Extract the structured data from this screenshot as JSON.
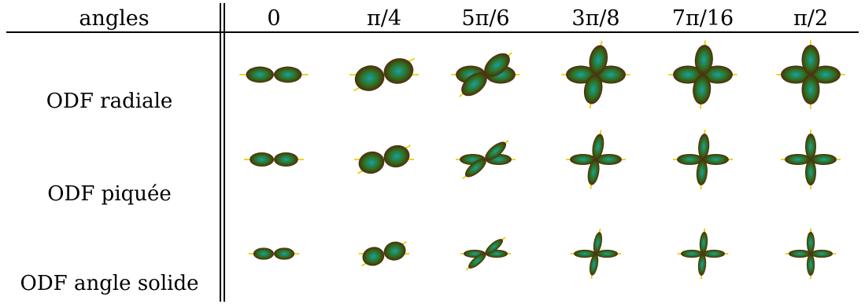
{
  "header": {
    "first": "angles",
    "angles": [
      "0",
      "π/4",
      "5π/6",
      "3π/8",
      "7π/16",
      "π/2"
    ]
  },
  "rows": [
    {
      "label": "ODF radiale"
    },
    {
      "label": "ODF piquée"
    },
    {
      "label": "ODF angle solide"
    }
  ],
  "colors": {
    "lobe_outer": "#5a1a0a",
    "lobe_mid": "#2e6e1c",
    "lobe_center": "#1aa0a0",
    "axis_stick": "#e6d200"
  }
}
